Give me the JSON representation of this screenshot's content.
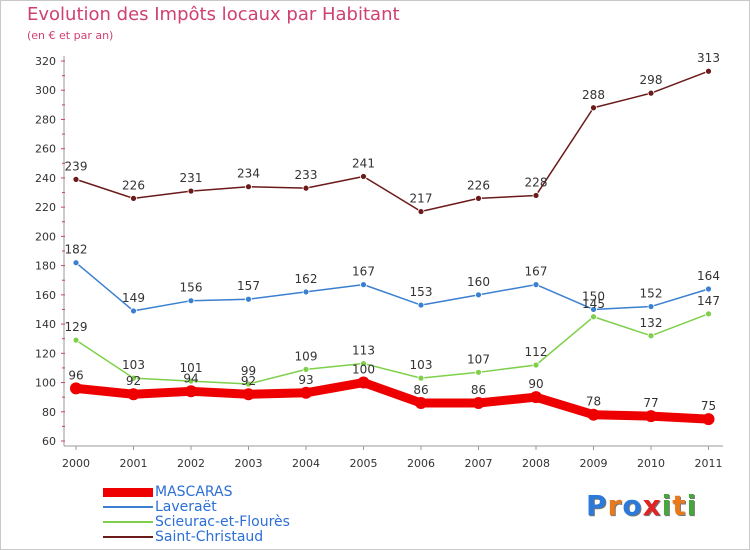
{
  "header": {
    "title": "Evolution des Impôts locaux par Habitant",
    "subtitle": "(en € et par an)"
  },
  "logo": {
    "letters": [
      "P",
      "r",
      "o",
      "x",
      "i",
      "t",
      "i"
    ],
    "colors": [
      "#2b79d8",
      "#e87a1c",
      "#2b79d8",
      "#e02424",
      "#46a83c",
      "#e87a1c",
      "#46a83c"
    ]
  },
  "chart_data": {
    "type": "line",
    "x": [
      "2000",
      "2001",
      "2002",
      "2003",
      "2004",
      "2005",
      "2006",
      "2007",
      "2008",
      "2009",
      "2010",
      "2011"
    ],
    "ylim": [
      60,
      320
    ],
    "yticks": [
      60,
      80,
      100,
      120,
      140,
      160,
      180,
      200,
      220,
      240,
      260,
      280,
      300,
      320
    ],
    "grid": false,
    "legend": "bottom-left",
    "series": [
      {
        "name": "MASCARAS",
        "color": "#ee0000",
        "values": [
          96,
          92,
          94,
          92,
          93,
          100,
          86,
          86,
          90,
          78,
          77,
          75
        ]
      },
      {
        "name": "Laveraët",
        "color": "#3a7fd0",
        "values": [
          182,
          149,
          156,
          157,
          162,
          167,
          153,
          160,
          167,
          150,
          152,
          164
        ]
      },
      {
        "name": "Scieurac-et-Flourès",
        "color": "#7ed04a",
        "values": [
          129,
          103,
          101,
          99,
          109,
          113,
          103,
          107,
          112,
          145,
          132,
          147
        ]
      },
      {
        "name": "Saint-Christaud",
        "color": "#6b1a1a",
        "values": [
          239,
          226,
          231,
          234,
          233,
          241,
          217,
          226,
          228,
          288,
          298,
          313
        ]
      }
    ]
  }
}
